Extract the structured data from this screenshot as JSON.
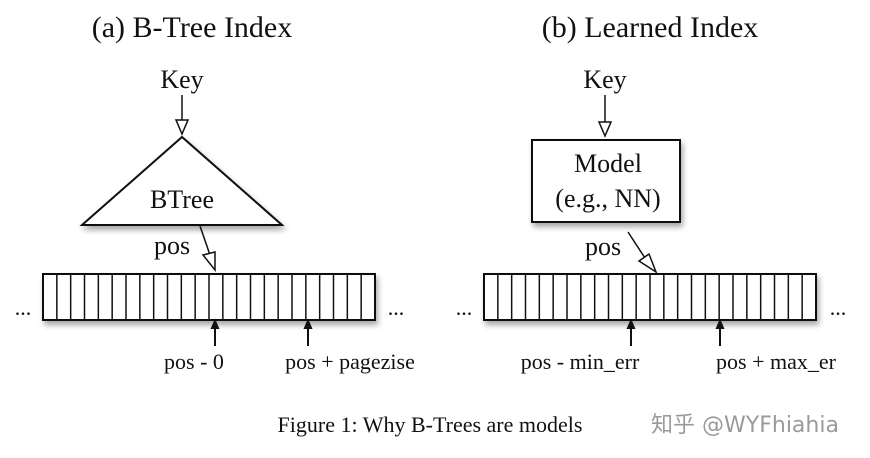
{
  "left": {
    "title": "(a) B-Tree Index",
    "key": "Key",
    "node": "BTree",
    "pos": "pos",
    "ellipsis": "...",
    "low": "pos - 0",
    "high": "pos + pagezise"
  },
  "right": {
    "title": "(b) Learned Index",
    "key": "Key",
    "node_line1": "Model",
    "node_line2": "(e.g., NN)",
    "pos": "pos",
    "ellipsis": "...",
    "low": "pos - min_err",
    "high": "pos + max_er"
  },
  "caption": "Figure 1: Why B-Trees are models",
  "watermark": "知乎 @WYFhiahia"
}
